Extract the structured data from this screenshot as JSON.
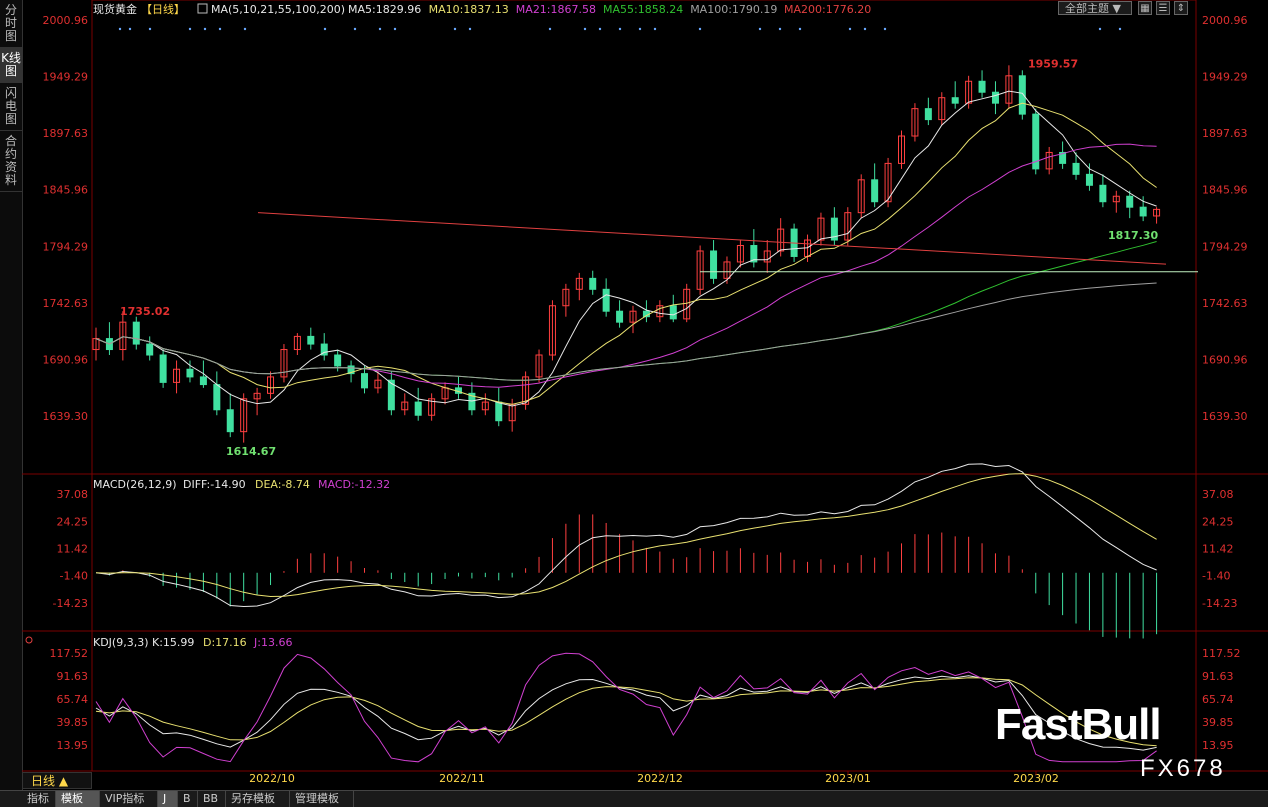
{
  "sidebar": {
    "items": [
      {
        "label": "分时图",
        "active": false
      },
      {
        "label": "K线图",
        "active": true
      },
      {
        "label": "闪电图",
        "active": false
      },
      {
        "label": "合约资料",
        "active": false
      }
    ]
  },
  "header": {
    "instrument": "现货黄金",
    "period_tag": "【日线】",
    "ma_title": "MA(5,10,21,55,100,200)",
    "ma_values": [
      {
        "label": "MA5:1829.96",
        "color": "#e8e8e8"
      },
      {
        "label": "MA10:1837.13",
        "color": "#e8e070"
      },
      {
        "label": "MA21:1867.58",
        "color": "#d040d0"
      },
      {
        "label": "MA55:1858.24",
        "color": "#30c030"
      },
      {
        "label": "MA100:1790.19",
        "color": "#a0a0a0"
      },
      {
        "label": "MA200:1776.20",
        "color": "#e04040"
      }
    ],
    "topic_button": "全部主题",
    "icons": [
      "grid-icon",
      "list-icon",
      "scale-icon"
    ]
  },
  "price_axis": {
    "ticks": [
      "2000.96",
      "1949.29",
      "1897.63",
      "1845.96",
      "1794.29",
      "1742.63",
      "1690.96",
      "1639.30"
    ]
  },
  "macd": {
    "title": "MACD(26,12,9)",
    "diff_label": "DIFF:-14.90",
    "dea_label": "DEA:-8.74",
    "macd_label": "MACD:-12.32",
    "ticks": [
      "37.08",
      "24.25",
      "11.42",
      "-1.40",
      "-14.23"
    ]
  },
  "kdj": {
    "title": "KDJ(9,3,3)",
    "k_label": "K:15.99",
    "d_label": "D:17.16",
    "j_label": "J:13.66",
    "ticks": [
      "117.52",
      "91.63",
      "65.74",
      "39.85",
      "13.95"
    ]
  },
  "time_axis": [
    "2022/10",
    "2022/11",
    "2022/12",
    "2023/01",
    "2023/02"
  ],
  "annotations": {
    "high_first": "1735.02",
    "low": "1614.67",
    "high": "1959.57",
    "last_low": "1817.30"
  },
  "period_selector": "日线",
  "bottom_tabs": [
    {
      "label": "指标",
      "active": false
    },
    {
      "label": "模板",
      "active": true
    },
    {
      "label": "VIP指标",
      "active": false
    },
    {
      "label": "J",
      "active": true
    },
    {
      "label": "B",
      "active": false
    },
    {
      "label": "BB",
      "active": false
    },
    {
      "label": "另存模板",
      "active": false
    },
    {
      "label": "管理模板",
      "active": false
    }
  ],
  "watermark": {
    "brand": "FastBull",
    "code": "FX678"
  },
  "colors": {
    "up": "#ff4040",
    "down": "#40e0a0",
    "axis_label": "#e03030",
    "highlight": "#70e070"
  },
  "chart_data": {
    "type": "candlestick",
    "x_labels": [
      "2022/10",
      "2022/11",
      "2022/12",
      "2023/01",
      "2023/02"
    ],
    "price_range": [
      1614.67,
      2000.96
    ],
    "candles": [
      [
        1700,
        1720,
        1690,
        1710
      ],
      [
        1710,
        1725,
        1695,
        1700
      ],
      [
        1700,
        1735,
        1690,
        1725
      ],
      [
        1725,
        1730,
        1700,
        1705
      ],
      [
        1705,
        1712,
        1690,
        1695
      ],
      [
        1695,
        1700,
        1665,
        1670
      ],
      [
        1670,
        1690,
        1660,
        1682
      ],
      [
        1682,
        1690,
        1670,
        1675
      ],
      [
        1675,
        1690,
        1665,
        1668
      ],
      [
        1668,
        1680,
        1640,
        1645
      ],
      [
        1645,
        1660,
        1620,
        1625
      ],
      [
        1625,
        1660,
        1615,
        1655
      ],
      [
        1655,
        1665,
        1640,
        1660
      ],
      [
        1660,
        1680,
        1655,
        1675
      ],
      [
        1675,
        1705,
        1670,
        1700
      ],
      [
        1700,
        1715,
        1695,
        1712
      ],
      [
        1712,
        1720,
        1700,
        1705
      ],
      [
        1705,
        1715,
        1690,
        1695
      ],
      [
        1695,
        1700,
        1680,
        1685
      ],
      [
        1685,
        1690,
        1670,
        1678
      ],
      [
        1678,
        1685,
        1660,
        1665
      ],
      [
        1665,
        1680,
        1660,
        1672
      ],
      [
        1672,
        1680,
        1640,
        1645
      ],
      [
        1645,
        1660,
        1640,
        1652
      ],
      [
        1652,
        1665,
        1635,
        1640
      ],
      [
        1640,
        1660,
        1635,
        1655
      ],
      [
        1655,
        1670,
        1650,
        1665
      ],
      [
        1665,
        1675,
        1655,
        1660
      ],
      [
        1660,
        1670,
        1640,
        1645
      ],
      [
        1645,
        1660,
        1640,
        1652
      ],
      [
        1652,
        1665,
        1630,
        1635
      ],
      [
        1635,
        1655,
        1625,
        1650
      ],
      [
        1650,
        1680,
        1645,
        1675
      ],
      [
        1675,
        1700,
        1670,
        1695
      ],
      [
        1695,
        1745,
        1690,
        1740
      ],
      [
        1740,
        1760,
        1730,
        1755
      ],
      [
        1755,
        1770,
        1745,
        1765
      ],
      [
        1765,
        1772,
        1750,
        1755
      ],
      [
        1755,
        1765,
        1730,
        1735
      ],
      [
        1735,
        1745,
        1720,
        1725
      ],
      [
        1725,
        1740,
        1715,
        1735
      ],
      [
        1735,
        1745,
        1725,
        1730
      ],
      [
        1730,
        1745,
        1725,
        1740
      ],
      [
        1740,
        1750,
        1725,
        1728
      ],
      [
        1728,
        1760,
        1725,
        1755
      ],
      [
        1755,
        1795,
        1750,
        1790
      ],
      [
        1790,
        1800,
        1760,
        1765
      ],
      [
        1765,
        1785,
        1760,
        1780
      ],
      [
        1780,
        1800,
        1775,
        1795
      ],
      [
        1795,
        1810,
        1775,
        1780
      ],
      [
        1780,
        1800,
        1770,
        1790
      ],
      [
        1790,
        1820,
        1785,
        1810
      ],
      [
        1810,
        1815,
        1780,
        1785
      ],
      [
        1785,
        1805,
        1780,
        1800
      ],
      [
        1800,
        1825,
        1795,
        1820
      ],
      [
        1820,
        1830,
        1795,
        1800
      ],
      [
        1800,
        1830,
        1795,
        1825
      ],
      [
        1825,
        1860,
        1820,
        1855
      ],
      [
        1855,
        1870,
        1830,
        1835
      ],
      [
        1835,
        1875,
        1830,
        1870
      ],
      [
        1870,
        1900,
        1865,
        1895
      ],
      [
        1895,
        1925,
        1890,
        1920
      ],
      [
        1920,
        1930,
        1905,
        1910
      ],
      [
        1910,
        1935,
        1905,
        1930
      ],
      [
        1930,
        1945,
        1920,
        1925
      ],
      [
        1925,
        1950,
        1920,
        1945
      ],
      [
        1945,
        1955,
        1930,
        1935
      ],
      [
        1935,
        1945,
        1915,
        1925
      ],
      [
        1925,
        1959.57,
        1920,
        1950
      ],
      [
        1950,
        1955,
        1910,
        1915
      ],
      [
        1915,
        1920,
        1860,
        1865
      ],
      [
        1865,
        1885,
        1860,
        1880
      ],
      [
        1880,
        1890,
        1865,
        1870
      ],
      [
        1870,
        1880,
        1855,
        1860
      ],
      [
        1860,
        1870,
        1845,
        1850
      ],
      [
        1850,
        1860,
        1830,
        1835
      ],
      [
        1835,
        1845,
        1825,
        1840
      ],
      [
        1840,
        1845,
        1820,
        1830
      ],
      [
        1830,
        1840,
        1817.3,
        1822
      ],
      [
        1822,
        1830,
        1815,
        1828
      ]
    ]
  }
}
